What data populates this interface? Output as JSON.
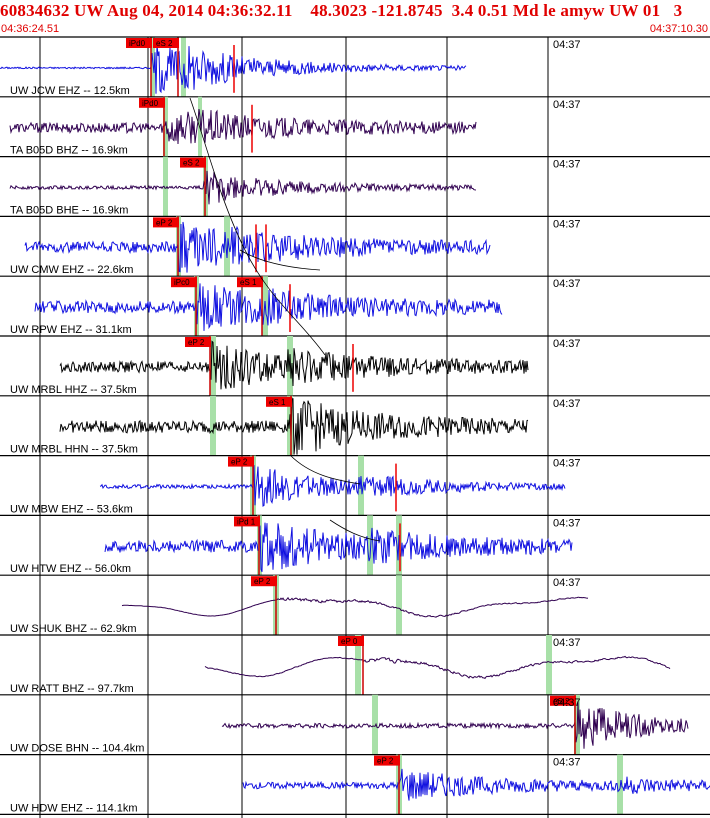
{
  "header": {
    "title": "60834632 UW Aug 04, 2014 04:36:32.11    48.3023 -121.8745  3.4 0.51 Md le amyw UW 01   3",
    "start_time": "04:36:24.51",
    "end_time": "04:37:10.30"
  },
  "colors": {
    "header_text": "#e00000",
    "pick_box": "#ee0000",
    "trace_blue": "#1010e0",
    "trace_purple": "#300050",
    "trace_black": "#000000",
    "window_green": "#a8e0a8",
    "grid": "#000000"
  },
  "minute_label": "04:37",
  "traces": [
    {
      "label": "UW JCW EHZ -- 12.5km",
      "color": "blue",
      "picks": [
        {
          "text": "iPd0"
        },
        {
          "text": "eS 2"
        }
      ],
      "amp": 0.9,
      "noise": 0.03,
      "mode": "event"
    },
    {
      "label": "TA B05D BHZ -- 16.9km",
      "color": "purple",
      "picks": [
        {
          "text": "iPd0"
        }
      ],
      "amp": 0.55,
      "noise": 0.18,
      "mode": "event"
    },
    {
      "label": "TA B05D BHE -- 16.9km",
      "color": "purple",
      "picks": [
        {
          "text": "eS 2"
        }
      ],
      "amp": 0.45,
      "noise": 0.06,
      "mode": "event"
    },
    {
      "label": "UW CMW EHZ -- 22.6km",
      "color": "blue",
      "picks": [
        {
          "text": "eP 2"
        }
      ],
      "amp": 0.75,
      "noise": 0.2,
      "mode": "event"
    },
    {
      "label": "UW RPW EHZ -- 31.1km",
      "color": "blue",
      "picks": [
        {
          "text": "iPc0"
        },
        {
          "text": "eS 1"
        }
      ],
      "amp": 0.7,
      "noise": 0.22,
      "mode": "event"
    },
    {
      "label": "UW MRBL HHZ -- 37.5km",
      "color": "black",
      "picks": [
        {
          "text": "eP 2"
        }
      ],
      "amp": 0.75,
      "noise": 0.2,
      "mode": "event"
    },
    {
      "label": "UW MRBL HHN -- 37.5km",
      "color": "black",
      "picks": [
        {
          "text": "eS 1"
        }
      ],
      "amp": 0.7,
      "noise": 0.22,
      "mode": "event"
    },
    {
      "label": "UW MBW EHZ -- 53.6km",
      "color": "blue",
      "picks": [
        {
          "text": "eP 2"
        }
      ],
      "amp": 0.7,
      "noise": 0.07,
      "mode": "event"
    },
    {
      "label": "UW HTW EHZ -- 56.0km",
      "color": "blue",
      "picks": [
        {
          "text": "iPd 1"
        }
      ],
      "amp": 0.8,
      "noise": 0.22,
      "mode": "event"
    },
    {
      "label": "UW SHUK BHZ -- 62.9km",
      "color": "purple",
      "picks": [
        {
          "text": "eP 2"
        }
      ],
      "amp": 0.5,
      "noise": 0.02,
      "mode": "swell"
    },
    {
      "label": "UW RATT BHZ -- 97.7km",
      "color": "purple",
      "picks": [
        {
          "text": "eP 0"
        }
      ],
      "amp": 0.55,
      "noise": 0.05,
      "mode": "swell"
    },
    {
      "label": "UW DOSE BHN -- 104.4km",
      "color": "purple",
      "picks": [
        {
          "text": "eS 2"
        }
      ],
      "amp": 0.6,
      "noise": 0.08,
      "mode": "event"
    },
    {
      "label": "UW HDW EHZ -- 114.1km",
      "color": "blue",
      "picks": [
        {
          "text": "eP 2"
        }
      ],
      "amp": 0.55,
      "noise": 0.12,
      "mode": "event"
    }
  ]
}
